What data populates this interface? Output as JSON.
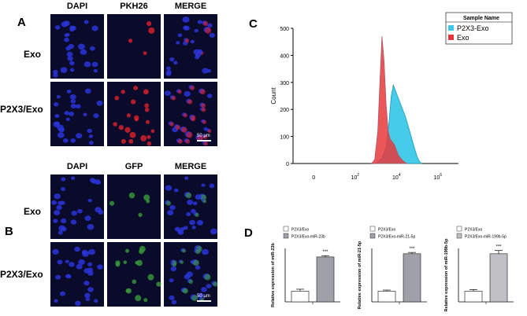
{
  "panel_a": {
    "letter": "A",
    "columns": [
      "DAPI",
      "PKH26",
      "MERGE"
    ],
    "rows": [
      "Exo",
      "P2X3/Exo"
    ],
    "scale_bar": "50 μm",
    "colors": {
      "background": "#0a0a2a",
      "nuclei": "#2a34d8",
      "signal": "#e0202a"
    }
  },
  "panel_b": {
    "letter": "B",
    "columns": [
      "DAPI",
      "GFP",
      "MERGE"
    ],
    "rows": [
      "Exo",
      "P2X3/Exo"
    ],
    "scale_bar": "50 μm",
    "colors": {
      "background": "#0a0a2a",
      "nuclei": "#2a34d8",
      "signal": "#3a9a3a"
    }
  },
  "panel_c": {
    "letter": "C",
    "legend_title": "Sample Name",
    "chart_data": {
      "type": "area",
      "ylabel": "Count",
      "xlabel": "",
      "x_scale": "log",
      "ylim": [
        0,
        500
      ],
      "y_ticks": [
        "0",
        "100",
        "200",
        "300",
        "400",
        "500"
      ],
      "x_ticks": [
        {
          "label": "0",
          "pos": 0
        },
        {
          "label": "10",
          "sup": "2",
          "pos": 2
        },
        {
          "label": "10",
          "sup": "4",
          "pos": 4
        },
        {
          "label": "10",
          "sup": "6",
          "pos": 6
        }
      ],
      "series": [
        {
          "name": "P2X3-Exo",
          "color": "#3cc8e8",
          "x": [
            3.0,
            3.3,
            3.5,
            3.65,
            3.75,
            3.85,
            3.95,
            4.05,
            4.15,
            4.25,
            4.35,
            4.45,
            4.6,
            4.75,
            4.9,
            5.0,
            5.1,
            5.2
          ],
          "y": [
            0,
            20,
            60,
            160,
            250,
            290,
            270,
            250,
            230,
            210,
            190,
            170,
            130,
            90,
            50,
            25,
            10,
            0
          ]
        },
        {
          "name": "Exo",
          "color": "#e8383c",
          "x": [
            2.8,
            2.95,
            3.1,
            3.2,
            3.3,
            3.4,
            3.5,
            3.6,
            3.7,
            3.8,
            3.9,
            4.0,
            4.1,
            4.2,
            4.35,
            4.5
          ],
          "y": [
            0,
            15,
            120,
            300,
            470,
            380,
            220,
            120,
            90,
            80,
            70,
            50,
            30,
            20,
            8,
            0
          ]
        }
      ]
    }
  },
  "panel_d": {
    "letter": "D",
    "chart_data": [
      {
        "type": "bar",
        "categories": [
          "P2X3/Exo",
          "P2X3/Exo-miR-23b"
        ],
        "values": [
          1.0,
          4.2
        ],
        "errors": [
          0.18,
          0.12
        ],
        "ylabel": "Relative expression of miR-23b",
        "significance": "***",
        "colors": [
          "#ffffff",
          "#a0a0a8"
        ],
        "ylim": [
          0,
          5
        ]
      },
      {
        "type": "bar",
        "categories": [
          "P2X3/Exo",
          "P2X3/Exo-miR-21-5p"
        ],
        "values": [
          1.0,
          4.5
        ],
        "errors": [
          0.1,
          0.12
        ],
        "ylabel": "Relative expression of miR-21-5p",
        "significance": "***",
        "colors": [
          "#ffffff",
          "#a0a0a8"
        ],
        "ylim": [
          0,
          5
        ]
      },
      {
        "type": "bar",
        "categories": [
          "P2X3/Exo",
          "P2X3/Exo-miR-199b-5p"
        ],
        "values": [
          1.0,
          4.5
        ],
        "errors": [
          0.15,
          0.3
        ],
        "ylabel": "Relative expression of miR-199b-5p",
        "significance": "***",
        "colors": [
          "#ffffff",
          "#c0c0c4"
        ],
        "ylim": [
          0,
          5
        ]
      }
    ]
  }
}
